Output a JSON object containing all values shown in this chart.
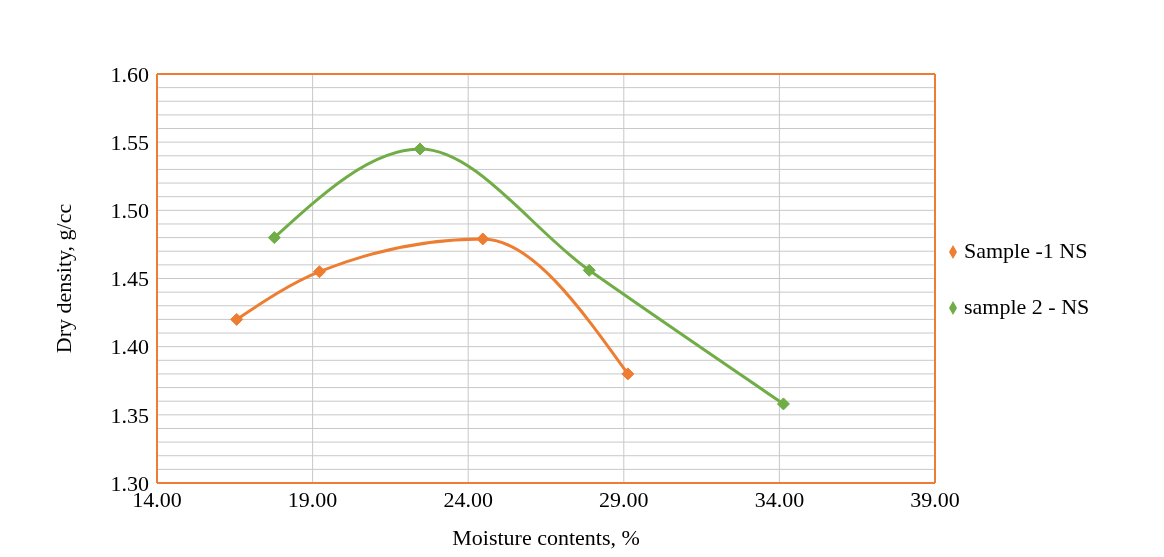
{
  "chart_data": {
    "type": "line",
    "xlabel": "Moisture contents, %",
    "ylabel": "Dry density, g/cc",
    "xlim": [
      14,
      39
    ],
    "xticks": [
      {
        "value": 14,
        "label": "14.00"
      },
      {
        "value": 19,
        "label": "19.00"
      },
      {
        "value": 24,
        "label": "24.00"
      },
      {
        "value": 29,
        "label": "29.00"
      },
      {
        "value": 34,
        "label": "34.00"
      },
      {
        "value": 39,
        "label": "39.00"
      }
    ],
    "ylim": [
      1.3,
      1.6
    ],
    "yticks": [
      {
        "value": 1.3,
        "label": "1.30"
      },
      {
        "value": 1.31,
        "label": null
      },
      {
        "value": 1.32,
        "label": null
      },
      {
        "value": 1.33,
        "label": null
      },
      {
        "value": 1.34,
        "label": null
      },
      {
        "value": 1.35,
        "label": "1.35"
      },
      {
        "value": 1.36,
        "label": null
      },
      {
        "value": 1.37,
        "label": null
      },
      {
        "value": 1.38,
        "label": null
      },
      {
        "value": 1.39,
        "label": null
      },
      {
        "value": 1.4,
        "label": "1.40"
      },
      {
        "value": 1.41,
        "label": null
      },
      {
        "value": 1.42,
        "label": null
      },
      {
        "value": 1.43,
        "label": null
      },
      {
        "value": 1.44,
        "label": null
      },
      {
        "value": 1.45,
        "label": "1.45"
      },
      {
        "value": 1.46,
        "label": null
      },
      {
        "value": 1.47,
        "label": null
      },
      {
        "value": 1.48,
        "label": null
      },
      {
        "value": 1.49,
        "label": null
      },
      {
        "value": 1.5,
        "label": "1.50"
      },
      {
        "value": 1.51,
        "label": null
      },
      {
        "value": 1.52,
        "label": null
      },
      {
        "value": 1.53,
        "label": null
      },
      {
        "value": 1.54,
        "label": null
      },
      {
        "value": 1.55,
        "label": "1.55"
      },
      {
        "value": 1.56,
        "label": null
      },
      {
        "value": 1.57,
        "label": null
      },
      {
        "value": 1.58,
        "label": null
      },
      {
        "value": 1.59,
        "label": null
      },
      {
        "value": 1.6,
        "label": "1.60"
      }
    ],
    "grid": true,
    "legend": "right",
    "marker": "diamond",
    "line_style": "solid",
    "series": [
      {
        "name": "Sample -1 NS",
        "color": "#ed7d31",
        "x": [
          16.56,
          19.22,
          24.47,
          29.13
        ],
        "values": [
          1.42,
          1.455,
          1.479,
          1.38
        ]
      },
      {
        "name": "sample 2 - NS",
        "color": "#70ad47",
        "x": [
          17.77,
          22.45,
          27.89,
          34.13
        ],
        "values": [
          1.48,
          1.545,
          1.456,
          1.358
        ]
      }
    ]
  }
}
